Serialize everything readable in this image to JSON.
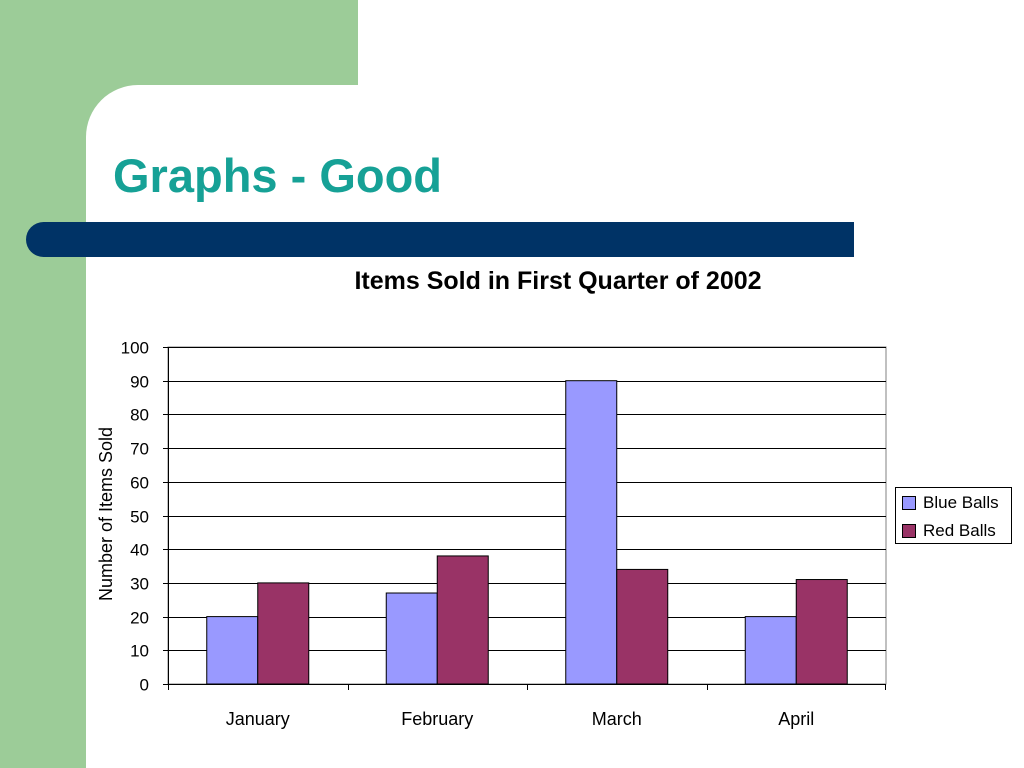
{
  "slide": {
    "title": "Graphs - Good",
    "colors": {
      "title": "#16a196",
      "side_band": "#9ccc98",
      "title_bar": "#003366"
    }
  },
  "chart_data": {
    "type": "bar",
    "title": "Items Sold in First Quarter of 2002",
    "xlabel": "",
    "ylabel": "Number of Items Sold",
    "categories": [
      "January",
      "February",
      "March",
      "April"
    ],
    "series": [
      {
        "name": "Blue Balls",
        "color": "#9999ff",
        "values": [
          20,
          27,
          90,
          20
        ]
      },
      {
        "name": "Red Balls",
        "color": "#993366",
        "values": [
          30,
          38,
          34,
          31
        ]
      }
    ],
    "ylim": [
      0,
      100
    ],
    "yticks": [
      0,
      10,
      20,
      30,
      40,
      50,
      60,
      70,
      80,
      90,
      100
    ],
    "grid": true,
    "legend_position": "right"
  }
}
